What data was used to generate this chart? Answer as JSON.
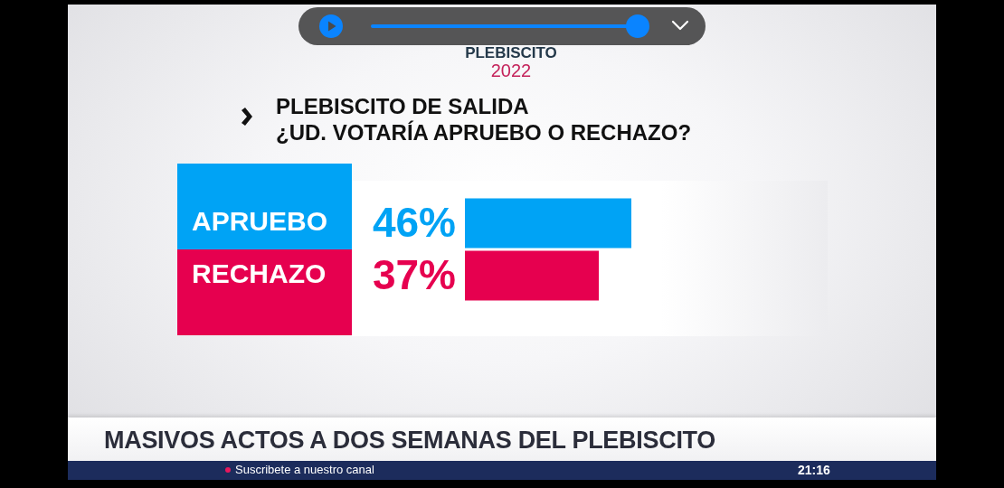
{
  "chart_data": {
    "type": "bar",
    "orientation": "horizontal",
    "title": "PLEBISCITO DE SALIDA",
    "subtitle": "¿UD. VOTARÍA APRUEBO O RECHAZO?",
    "categories": [
      "APRUEBO",
      "RECHAZO"
    ],
    "values": [
      46,
      37
    ],
    "colors": [
      "#00a3f5",
      "#e6004f"
    ],
    "value_labels": [
      "46%",
      "37%"
    ],
    "xlim": [
      0,
      100
    ],
    "tick_labels": "y",
    "annotations": [
      "PLEBISCITO",
      "2022",
      "MASIVOS ACTOS A DOS SEMANAS DEL PLEBISCITO",
      "Suscribete a nuestro canal",
      "21:16"
    ]
  }
}
